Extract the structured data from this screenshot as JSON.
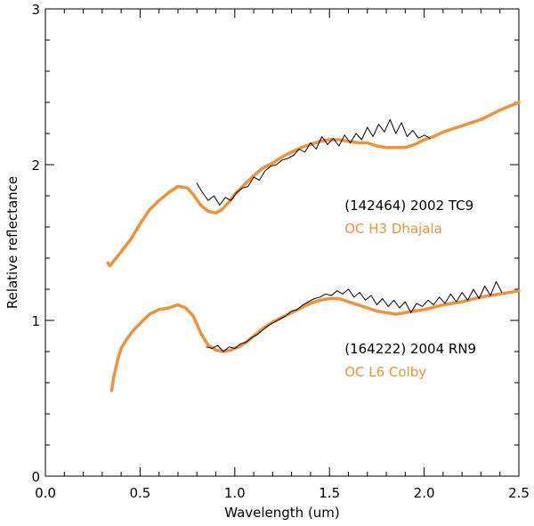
{
  "chart_data": {
    "type": "line",
    "title": "",
    "xlabel": "Wavelength (um)",
    "ylabel": "Relative reflectance",
    "xlim": [
      0.0,
      2.5
    ],
    "ylim": [
      0,
      3
    ],
    "x_ticks": [
      "0.0",
      "0.5",
      "1.0",
      "1.5",
      "2.0",
      "2.5"
    ],
    "x_tick_values": [
      0.0,
      0.5,
      1.0,
      1.5,
      2.0,
      2.5
    ],
    "y_ticks": [
      "0",
      "1",
      "2",
      "3"
    ],
    "y_tick_values": [
      0,
      1,
      2,
      3
    ],
    "grid": false,
    "colors": {
      "observed": "#000000",
      "model": "#f0923a"
    },
    "annotations": [
      {
        "text": "(142464) 2002 TC9",
        "color": "#000000",
        "x": 1.58,
        "y": 1.71
      },
      {
        "text": "OC H3 Dhajala",
        "color": "#f0923a",
        "x": 1.58,
        "y": 1.56
      },
      {
        "text": "(164222) 2004 RN9",
        "color": "#000000",
        "x": 1.58,
        "y": 0.79
      },
      {
        "text": "OC L6 Colby",
        "color": "#f0923a",
        "x": 1.58,
        "y": 0.64
      }
    ],
    "series": [
      {
        "name": "OC H3 Dhajala",
        "role": "model",
        "x": [
          0.33,
          0.34,
          0.36,
          0.4,
          0.45,
          0.5,
          0.55,
          0.6,
          0.65,
          0.7,
          0.75,
          0.78,
          0.82,
          0.86,
          0.9,
          0.93,
          0.97,
          1.0,
          1.05,
          1.1,
          1.15,
          1.2,
          1.25,
          1.3,
          1.35,
          1.4,
          1.45,
          1.5,
          1.55,
          1.6,
          1.65,
          1.7,
          1.75,
          1.8,
          1.85,
          1.9,
          1.95,
          2.0,
          2.05,
          2.1,
          2.2,
          2.3,
          2.4,
          2.5
        ],
        "values": [
          1.37,
          1.35,
          1.38,
          1.44,
          1.52,
          1.62,
          1.71,
          1.77,
          1.82,
          1.86,
          1.85,
          1.81,
          1.74,
          1.7,
          1.69,
          1.71,
          1.76,
          1.81,
          1.87,
          1.93,
          1.98,
          2.01,
          2.05,
          2.08,
          2.11,
          2.13,
          2.15,
          2.16,
          2.16,
          2.15,
          2.14,
          2.14,
          2.12,
          2.11,
          2.11,
          2.11,
          2.13,
          2.16,
          2.18,
          2.21,
          2.25,
          2.29,
          2.35,
          2.4
        ]
      },
      {
        "name": "(142464) 2002 TC9",
        "role": "observed",
        "x": [
          0.8,
          0.83,
          0.86,
          0.89,
          0.92,
          0.95,
          0.98,
          1.01,
          1.04,
          1.07,
          1.1,
          1.13,
          1.16,
          1.19,
          1.22,
          1.25,
          1.28,
          1.31,
          1.34,
          1.37,
          1.4,
          1.43,
          1.46,
          1.49,
          1.52,
          1.55,
          1.58,
          1.61,
          1.64,
          1.67,
          1.7,
          1.73,
          1.76,
          1.79,
          1.82,
          1.85,
          1.88,
          1.91,
          1.94,
          1.97,
          2.0,
          2.03
        ],
        "values": [
          1.88,
          1.82,
          1.77,
          1.8,
          1.74,
          1.79,
          1.77,
          1.82,
          1.85,
          1.86,
          1.92,
          1.9,
          1.96,
          1.99,
          2.0,
          2.03,
          2.04,
          2.06,
          2.1,
          2.08,
          2.14,
          2.1,
          2.18,
          2.13,
          2.17,
          2.12,
          2.19,
          2.14,
          2.2,
          2.16,
          2.24,
          2.18,
          2.26,
          2.21,
          2.29,
          2.2,
          2.27,
          2.18,
          2.22,
          2.17,
          2.19,
          2.17
        ]
      },
      {
        "name": "OC L6 Colby",
        "role": "model",
        "x": [
          0.35,
          0.36,
          0.38,
          0.4,
          0.43,
          0.46,
          0.5,
          0.55,
          0.6,
          0.65,
          0.7,
          0.74,
          0.78,
          0.82,
          0.86,
          0.9,
          0.94,
          0.98,
          1.02,
          1.06,
          1.1,
          1.15,
          1.2,
          1.25,
          1.3,
          1.35,
          1.4,
          1.45,
          1.5,
          1.55,
          1.6,
          1.65,
          1.7,
          1.75,
          1.8,
          1.85,
          1.9,
          1.95,
          2.0,
          2.1,
          2.2,
          2.3,
          2.4,
          2.5
        ],
        "values": [
          0.55,
          0.63,
          0.74,
          0.82,
          0.88,
          0.93,
          0.98,
          1.04,
          1.07,
          1.08,
          1.1,
          1.08,
          1.03,
          0.92,
          0.84,
          0.81,
          0.8,
          0.81,
          0.83,
          0.86,
          0.9,
          0.95,
          0.99,
          1.02,
          1.05,
          1.08,
          1.11,
          1.13,
          1.14,
          1.14,
          1.12,
          1.1,
          1.08,
          1.06,
          1.05,
          1.04,
          1.05,
          1.06,
          1.07,
          1.1,
          1.12,
          1.15,
          1.17,
          1.19
        ]
      },
      {
        "name": "(164222) 2004 RN9",
        "role": "observed",
        "x": [
          0.85,
          0.88,
          0.91,
          0.94,
          0.97,
          1.0,
          1.03,
          1.06,
          1.09,
          1.12,
          1.15,
          1.18,
          1.21,
          1.24,
          1.27,
          1.3,
          1.33,
          1.36,
          1.39,
          1.42,
          1.45,
          1.48,
          1.51,
          1.54,
          1.57,
          1.6,
          1.63,
          1.66,
          1.69,
          1.72,
          1.75,
          1.78,
          1.81,
          1.84,
          1.87,
          1.9,
          1.93,
          1.96,
          1.99,
          2.02,
          2.05,
          2.08,
          2.11,
          2.14,
          2.17,
          2.2,
          2.23,
          2.26,
          2.29,
          2.32,
          2.35,
          2.38,
          2.41
        ],
        "values": [
          0.83,
          0.82,
          0.84,
          0.8,
          0.83,
          0.82,
          0.85,
          0.86,
          0.89,
          0.91,
          0.94,
          0.97,
          0.99,
          1.01,
          1.03,
          1.06,
          1.07,
          1.1,
          1.12,
          1.14,
          1.15,
          1.17,
          1.16,
          1.19,
          1.17,
          1.2,
          1.15,
          1.18,
          1.13,
          1.16,
          1.1,
          1.14,
          1.09,
          1.13,
          1.08,
          1.12,
          1.05,
          1.11,
          1.09,
          1.13,
          1.1,
          1.15,
          1.11,
          1.17,
          1.12,
          1.18,
          1.13,
          1.2,
          1.14,
          1.22,
          1.16,
          1.25,
          1.18
        ]
      }
    ]
  }
}
